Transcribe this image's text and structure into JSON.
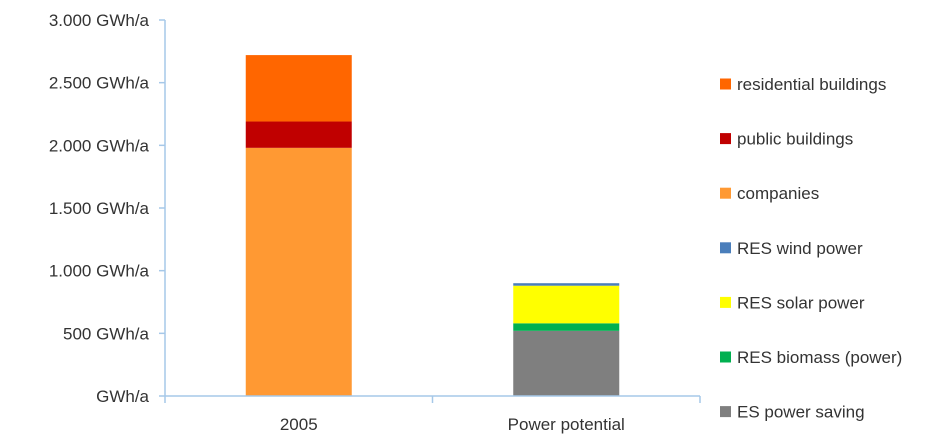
{
  "chart_data": {
    "type": "bar",
    "stacked": true,
    "categories": [
      "2005",
      "Power potential"
    ],
    "series": [
      {
        "name": "ES power saving",
        "color": "#7f7f7f",
        "values": [
          0,
          520
        ]
      },
      {
        "name": "RES biomass (power)",
        "color": "#00b050",
        "values": [
          0,
          60
        ]
      },
      {
        "name": "RES solar power",
        "color": "#ffff00",
        "values": [
          0,
          300
        ]
      },
      {
        "name": "RES wind power",
        "color": "#4a7ebb",
        "values": [
          0,
          20
        ]
      },
      {
        "name": "companies",
        "color": "#ff9933",
        "values": [
          1980,
          0
        ]
      },
      {
        "name": "public buildings",
        "color": "#c00000",
        "values": [
          210,
          0
        ]
      },
      {
        "name": "residential buildings",
        "color": "#ff6600",
        "values": [
          530,
          0
        ]
      }
    ],
    "y_ticks": [
      {
        "value": 0,
        "label": "GWh/a"
      },
      {
        "value": 500,
        "label": "500  GWh/a"
      },
      {
        "value": 1000,
        "label": "1.000  GWh/a"
      },
      {
        "value": 1500,
        "label": "1.500  GWh/a"
      },
      {
        "value": 2000,
        "label": "2.000  GWh/a"
      },
      {
        "value": 2500,
        "label": "2.500  GWh/a"
      },
      {
        "value": 3000,
        "label": "3.000  GWh/a"
      }
    ],
    "ylim": [
      0,
      3000
    ],
    "grid": false,
    "legend_position": "right",
    "legend_order": [
      "residential buildings",
      "public buildings",
      "companies",
      "RES wind power",
      "RES solar power",
      "RES biomass (power)",
      "ES power saving"
    ]
  }
}
